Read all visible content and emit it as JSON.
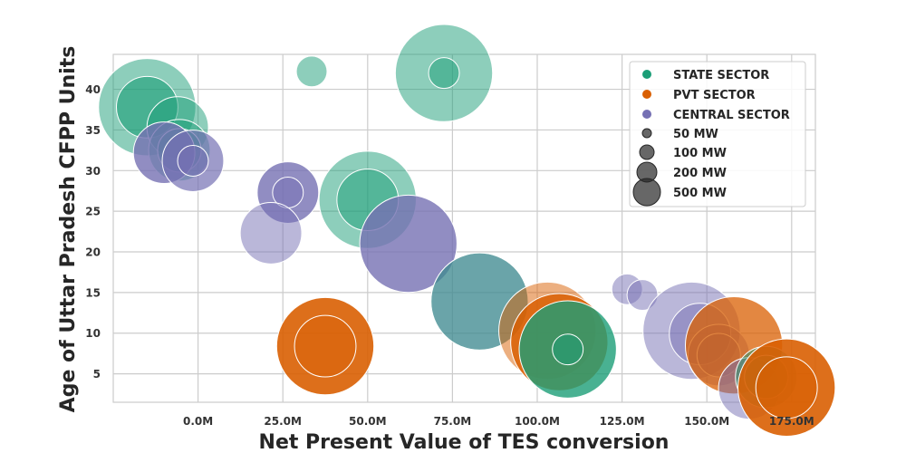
{
  "chart_data": {
    "type": "scatter",
    "title": "",
    "xlabel": "Net Present Value of TES conversion",
    "ylabel": "Age of Uttar Pradesh CFPP Units",
    "xlim": [
      -25,
      182
    ],
    "ylim": [
      1.5,
      44.3
    ],
    "xticks": [
      0,
      25,
      50,
      75,
      100,
      125,
      150,
      175
    ],
    "xtick_labels": [
      "0.0M",
      "25.0M",
      "50.0M",
      "75.0M",
      "100.0M",
      "125.0M",
      "150.0M",
      "175.0M"
    ],
    "yticks": [
      5,
      10,
      15,
      20,
      25,
      30,
      35,
      40
    ],
    "ytick_labels": [
      "5",
      "10",
      "15",
      "20",
      "25",
      "30",
      "35",
      "40"
    ],
    "grid": true,
    "legend_position": "top-right",
    "sectors": [
      {
        "name": "STATE SECTOR",
        "color": "#1b9e77"
      },
      {
        "name": "PVT SECTOR",
        "color": "#d95f02"
      },
      {
        "name": "CENTRAL SECTOR",
        "color": "#7570b3"
      }
    ],
    "size_legend": [
      {
        "label": "50 MW",
        "capacity": 50
      },
      {
        "label": "100 MW",
        "capacity": 100
      },
      {
        "label": "200 MW",
        "capacity": 200
      },
      {
        "label": "500 MW",
        "capacity": 500
      }
    ],
    "points": [
      {
        "x": -15,
        "y": 37.8,
        "sector": "STATE SECTOR",
        "capacity": 500,
        "alpha": 0.5
      },
      {
        "x": -15,
        "y": 37.8,
        "sector": "STATE SECTOR",
        "capacity": 200,
        "alpha": 0.6
      },
      {
        "x": -6,
        "y": 35.3,
        "sector": "STATE SECTOR",
        "capacity": 200,
        "alpha": 0.5
      },
      {
        "x": -5.5,
        "y": 32.5,
        "sector": "STATE SECTOR",
        "capacity": 200,
        "alpha": 0.5
      },
      {
        "x": -5.5,
        "y": 32.5,
        "sector": "STATE SECTOR",
        "capacity": 100,
        "alpha": 0.7
      },
      {
        "x": -10,
        "y": 32.2,
        "sector": "CENTRAL SECTOR",
        "capacity": 200,
        "alpha": 0.8
      },
      {
        "x": -1.5,
        "y": 31.2,
        "sector": "CENTRAL SECTOR",
        "capacity": 200,
        "alpha": 0.7
      },
      {
        "x": -1.5,
        "y": 31.2,
        "sector": "CENTRAL SECTOR",
        "capacity": 50,
        "alpha": 0.6
      },
      {
        "x": 33.5,
        "y": 42.2,
        "sector": "STATE SECTOR",
        "capacity": 50,
        "alpha": 0.5
      },
      {
        "x": 72.5,
        "y": 42,
        "sector": "STATE SECTOR",
        "capacity": 500,
        "alpha": 0.5
      },
      {
        "x": 72.5,
        "y": 42,
        "sector": "STATE SECTOR",
        "capacity": 50,
        "alpha": 0.5
      },
      {
        "x": 26.5,
        "y": 27.3,
        "sector": "CENTRAL SECTOR",
        "capacity": 200,
        "alpha": 0.8
      },
      {
        "x": 26.5,
        "y": 27.3,
        "sector": "CENTRAL SECTOR",
        "capacity": 50,
        "alpha": 0.5
      },
      {
        "x": 50,
        "y": 26.4,
        "sector": "STATE SECTOR",
        "capacity": 500,
        "alpha": 0.5
      },
      {
        "x": 50,
        "y": 26.4,
        "sector": "STATE SECTOR",
        "capacity": 200,
        "alpha": 0.5
      },
      {
        "x": 21.5,
        "y": 22.3,
        "sector": "CENTRAL SECTOR",
        "capacity": 200,
        "alpha": 0.5
      },
      {
        "x": 62,
        "y": 21,
        "sector": "CENTRAL SECTOR",
        "capacity": 500,
        "alpha": 0.8
      },
      {
        "x": 37.5,
        "y": 8.4,
        "sector": "PVT SECTOR",
        "capacity": 500,
        "alpha": 0.9
      },
      {
        "x": 37.5,
        "y": 8.4,
        "sector": "PVT SECTOR",
        "capacity": 200,
        "alpha": 0.4
      },
      {
        "x": 83,
        "y": 13.9,
        "sector": "CENTRAL SECTOR",
        "capacity": 500,
        "alpha": 0.6
      },
      {
        "x": 83,
        "y": 13.9,
        "sector": "STATE SECTOR",
        "capacity": 500,
        "alpha": 0.45
      },
      {
        "x": 103,
        "y": 10.3,
        "sector": "PVT SECTOR",
        "capacity": 500,
        "alpha": 0.5
      },
      {
        "x": 106.5,
        "y": 8.9,
        "sector": "PVT SECTOR",
        "capacity": 500,
        "alpha": 0.85
      },
      {
        "x": 109,
        "y": 8,
        "sector": "STATE SECTOR",
        "capacity": 500,
        "alpha": 0.8
      },
      {
        "x": 109,
        "y": 8,
        "sector": "STATE SECTOR",
        "capacity": 50,
        "alpha": 0.5
      },
      {
        "x": 126.5,
        "y": 15.4,
        "sector": "CENTRAL SECTOR",
        "capacity": 50,
        "alpha": 0.5
      },
      {
        "x": 131,
        "y": 14.7,
        "sector": "CENTRAL SECTOR",
        "capacity": 50,
        "alpha": 0.5
      },
      {
        "x": 145.5,
        "y": 10.3,
        "sector": "CENTRAL SECTOR",
        "capacity": 500,
        "alpha": 0.5
      },
      {
        "x": 148,
        "y": 9.9,
        "sector": "CENTRAL SECTOR",
        "capacity": 200,
        "alpha": 0.5
      },
      {
        "x": 153.5,
        "y": 7.3,
        "sector": "CENTRAL SECTOR",
        "capacity": 200,
        "alpha": 0.5
      },
      {
        "x": 153.5,
        "y": 7.3,
        "sector": "CENTRAL SECTOR",
        "capacity": 100,
        "alpha": 0.5
      },
      {
        "x": 158,
        "y": 8.5,
        "sector": "PVT SECTOR",
        "capacity": 500,
        "alpha": 0.75
      },
      {
        "x": 162.5,
        "y": 3.2,
        "sector": "CENTRAL SECTOR",
        "capacity": 200,
        "alpha": 0.5
      },
      {
        "x": 167.5,
        "y": 4.6,
        "sector": "STATE SECTOR",
        "capacity": 200,
        "alpha": 0.5
      },
      {
        "x": 167.5,
        "y": 4.6,
        "sector": "STATE SECTOR",
        "capacity": 100,
        "alpha": 0.6
      },
      {
        "x": 173.5,
        "y": 3.3,
        "sector": "PVT SECTOR",
        "capacity": 500,
        "alpha": 0.9
      },
      {
        "x": 173.5,
        "y": 3.3,
        "sector": "PVT SECTOR",
        "capacity": 200,
        "alpha": 0.6
      }
    ]
  }
}
